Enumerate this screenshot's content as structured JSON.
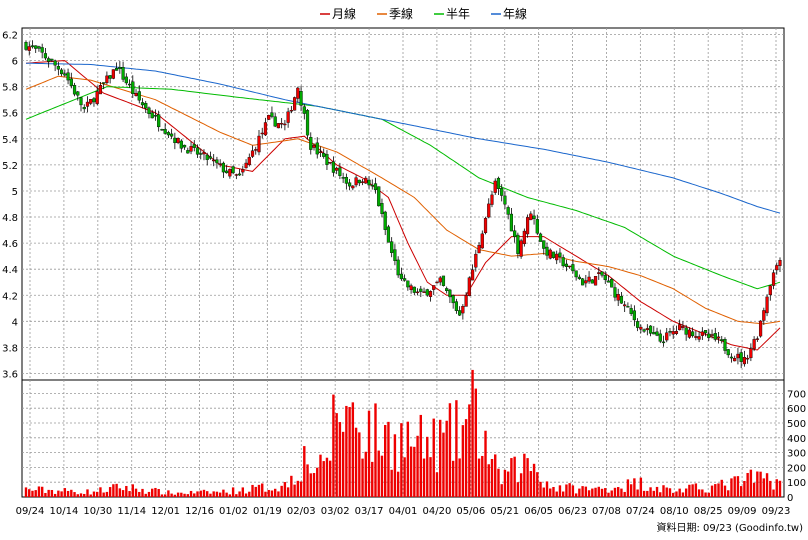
{
  "chart_data": {
    "type": "candlestick",
    "legend": [
      {
        "name": "月線",
        "color": "#cc0000"
      },
      {
        "name": "季線",
        "color": "#e06000"
      },
      {
        "name": "半年",
        "color": "#00bb00"
      },
      {
        "name": "年線",
        "color": "#1a66cc"
      }
    ],
    "x_labels": [
      "09/24",
      "10/14",
      "10/30",
      "11/14",
      "12/01",
      "12/16",
      "01/02",
      "01/19",
      "02/03",
      "03/02",
      "03/17",
      "04/01",
      "04/20",
      "05/06",
      "05/21",
      "06/05",
      "06/23",
      "07/08",
      "07/24",
      "08/10",
      "08/25",
      "09/09",
      "09/23"
    ],
    "price_axis": {
      "ticks": [
        "6.2",
        "6",
        "5.8",
        "5.6",
        "5.4",
        "5.2",
        "5",
        "4.8",
        "4.6",
        "4.4",
        "4.2",
        "4",
        "3.8",
        "3.6"
      ],
      "range": [
        3.55,
        6.25
      ]
    },
    "volume_axis": {
      "ticks": [
        "700",
        "600",
        "500",
        "400",
        "300",
        "200",
        "100",
        "0"
      ],
      "range": [
        0,
        750
      ]
    },
    "close_anchors": [
      [
        0,
        6.12
      ],
      [
        5,
        6.05
      ],
      [
        12,
        5.9
      ],
      [
        18,
        5.62
      ],
      [
        22,
        5.75
      ],
      [
        28,
        5.95
      ],
      [
        34,
        5.72
      ],
      [
        40,
        5.55
      ],
      [
        48,
        5.35
      ],
      [
        56,
        5.25
      ],
      [
        62,
        5.15
      ],
      [
        66,
        5.1
      ],
      [
        70,
        5.3
      ],
      [
        75,
        5.55
      ],
      [
        80,
        5.5
      ],
      [
        84,
        5.8
      ],
      [
        88,
        5.35
      ],
      [
        94,
        5.2
      ],
      [
        100,
        5.05
      ],
      [
        104,
        5.1
      ],
      [
        108,
        5.0
      ],
      [
        112,
        4.6
      ],
      [
        116,
        4.3
      ],
      [
        122,
        4.2
      ],
      [
        128,
        4.3
      ],
      [
        134,
        4.05
      ],
      [
        138,
        4.4
      ],
      [
        142,
        4.8
      ],
      [
        145,
        5.05
      ],
      [
        148,
        4.9
      ],
      [
        152,
        4.55
      ],
      [
        156,
        4.85
      ],
      [
        160,
        4.55
      ],
      [
        166,
        4.45
      ],
      [
        172,
        4.3
      ],
      [
        178,
        4.35
      ],
      [
        184,
        4.15
      ],
      [
        190,
        3.95
      ],
      [
        196,
        3.85
      ],
      [
        202,
        3.95
      ],
      [
        208,
        3.9
      ],
      [
        214,
        3.85
      ],
      [
        218,
        3.75
      ],
      [
        222,
        3.7
      ],
      [
        226,
        3.9
      ],
      [
        230,
        4.3
      ],
      [
        233,
        4.5
      ]
    ],
    "ma_month": [
      [
        0,
        5.98
      ],
      [
        12,
        6.0
      ],
      [
        24,
        5.75
      ],
      [
        40,
        5.6
      ],
      [
        50,
        5.4
      ],
      [
        60,
        5.2
      ],
      [
        70,
        5.15
      ],
      [
        80,
        5.4
      ],
      [
        86,
        5.42
      ],
      [
        96,
        5.2
      ],
      [
        104,
        5.1
      ],
      [
        112,
        4.95
      ],
      [
        118,
        4.6
      ],
      [
        124,
        4.3
      ],
      [
        130,
        4.2
      ],
      [
        136,
        4.2
      ],
      [
        142,
        4.45
      ],
      [
        150,
        4.65
      ],
      [
        160,
        4.65
      ],
      [
        170,
        4.5
      ],
      [
        180,
        4.35
      ],
      [
        190,
        4.15
      ],
      [
        200,
        4.0
      ],
      [
        210,
        3.9
      ],
      [
        218,
        3.82
      ],
      [
        226,
        3.78
      ],
      [
        233,
        3.95
      ]
    ],
    "ma_season": [
      [
        0,
        5.78
      ],
      [
        10,
        5.88
      ],
      [
        20,
        5.85
      ],
      [
        40,
        5.7
      ],
      [
        60,
        5.45
      ],
      [
        70,
        5.35
      ],
      [
        84,
        5.4
      ],
      [
        96,
        5.3
      ],
      [
        110,
        5.1
      ],
      [
        120,
        4.95
      ],
      [
        130,
        4.7
      ],
      [
        140,
        4.55
      ],
      [
        150,
        4.5
      ],
      [
        160,
        4.52
      ],
      [
        170,
        4.46
      ],
      [
        180,
        4.42
      ],
      [
        190,
        4.35
      ],
      [
        200,
        4.25
      ],
      [
        210,
        4.1
      ],
      [
        220,
        4.0
      ],
      [
        228,
        3.98
      ],
      [
        233,
        4.0
      ]
    ],
    "ma_half": [
      [
        0,
        5.55
      ],
      [
        10,
        5.65
      ],
      [
        25,
        5.8
      ],
      [
        45,
        5.78
      ],
      [
        65,
        5.72
      ],
      [
        90,
        5.65
      ],
      [
        110,
        5.55
      ],
      [
        125,
        5.35
      ],
      [
        140,
        5.1
      ],
      [
        155,
        4.95
      ],
      [
        170,
        4.85
      ],
      [
        185,
        4.72
      ],
      [
        200,
        4.5
      ],
      [
        215,
        4.35
      ],
      [
        226,
        4.25
      ],
      [
        233,
        4.3
      ]
    ],
    "ma_year": [
      [
        0,
        5.98
      ],
      [
        20,
        5.97
      ],
      [
        40,
        5.92
      ],
      [
        60,
        5.82
      ],
      [
        80,
        5.7
      ],
      [
        100,
        5.6
      ],
      [
        120,
        5.5
      ],
      [
        140,
        5.4
      ],
      [
        160,
        5.32
      ],
      [
        180,
        5.22
      ],
      [
        200,
        5.1
      ],
      [
        215,
        4.98
      ],
      [
        226,
        4.88
      ],
      [
        233,
        4.83
      ]
    ],
    "volume_anchors": [
      [
        0,
        60
      ],
      [
        20,
        40
      ],
      [
        30,
        80
      ],
      [
        45,
        30
      ],
      [
        60,
        40
      ],
      [
        80,
        90
      ],
      [
        86,
        300
      ],
      [
        92,
        200
      ],
      [
        96,
        700
      ],
      [
        101,
        650
      ],
      [
        108,
        480
      ],
      [
        118,
        450
      ],
      [
        124,
        400
      ],
      [
        134,
        500
      ],
      [
        138,
        680
      ],
      [
        142,
        420
      ],
      [
        146,
        150
      ],
      [
        156,
        280
      ],
      [
        162,
        80
      ],
      [
        176,
        60
      ],
      [
        190,
        110
      ],
      [
        200,
        50
      ],
      [
        215,
        90
      ],
      [
        226,
        150
      ],
      [
        233,
        140
      ]
    ]
  },
  "footer": {
    "source": "資料日期: 09/23  (Goodinfo.tw)"
  }
}
